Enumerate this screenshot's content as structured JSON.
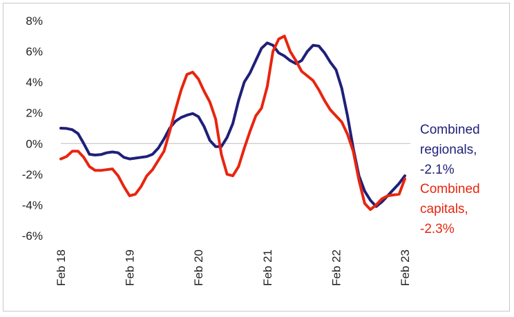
{
  "chart_data": {
    "type": "line",
    "title": "",
    "xlabel": "",
    "ylabel": "",
    "y_ticks": [
      "8%",
      "6%",
      "4%",
      "2%",
      "0%",
      "-2%",
      "-4%",
      "-6%"
    ],
    "y_tick_values": [
      8,
      6,
      4,
      2,
      0,
      -2,
      -4,
      -6
    ],
    "ylim": [
      -6,
      8
    ],
    "x_ticks": [
      "Feb 18",
      "Feb 19",
      "Feb 20",
      "Feb 21",
      "Feb 22",
      "Feb 23"
    ],
    "x_tick_months": [
      0,
      12,
      24,
      36,
      48,
      60
    ],
    "x_range": [
      0,
      60
    ],
    "x_unit": "months since Feb 18",
    "grid": false,
    "zero_line": true,
    "series": [
      {
        "name": "Combined regionals",
        "color": "#1f1f7a",
        "label_lines": [
          "Combined",
          "regionals,",
          "-2.1%"
        ],
        "points": [
          [
            0,
            1.0
          ],
          [
            1,
            0.98
          ],
          [
            2,
            0.9
          ],
          [
            3,
            0.65
          ],
          [
            4,
            0.0
          ],
          [
            5,
            -0.7
          ],
          [
            6,
            -0.75
          ],
          [
            7,
            -0.72
          ],
          [
            8,
            -0.6
          ],
          [
            9,
            -0.55
          ],
          [
            10,
            -0.6
          ],
          [
            11,
            -0.9
          ],
          [
            12,
            -1.0
          ],
          [
            13,
            -0.95
          ],
          [
            14,
            -0.9
          ],
          [
            15,
            -0.85
          ],
          [
            16,
            -0.7
          ],
          [
            17,
            -0.3
          ],
          [
            18,
            0.3
          ],
          [
            19,
            1.0
          ],
          [
            20,
            1.45
          ],
          [
            21,
            1.7
          ],
          [
            22,
            1.85
          ],
          [
            23,
            1.95
          ],
          [
            24,
            1.75
          ],
          [
            25,
            1.1
          ],
          [
            26,
            0.2
          ],
          [
            27,
            -0.2
          ],
          [
            28,
            -0.2
          ],
          [
            29,
            0.4
          ],
          [
            30,
            1.3
          ],
          [
            31,
            2.8
          ],
          [
            32,
            4.0
          ],
          [
            33,
            4.6
          ],
          [
            34,
            5.4
          ],
          [
            35,
            6.2
          ],
          [
            36,
            6.55
          ],
          [
            37,
            6.4
          ],
          [
            38,
            5.9
          ],
          [
            39,
            5.7
          ],
          [
            40,
            5.4
          ],
          [
            41,
            5.2
          ],
          [
            42,
            5.4
          ],
          [
            43,
            6.0
          ],
          [
            44,
            6.4
          ],
          [
            45,
            6.35
          ],
          [
            46,
            5.9
          ],
          [
            47,
            5.3
          ],
          [
            48,
            4.8
          ],
          [
            49,
            3.6
          ],
          [
            50,
            1.8
          ],
          [
            51,
            -0.3
          ],
          [
            52,
            -2.1
          ],
          [
            53,
            -3.1
          ],
          [
            54,
            -3.7
          ],
          [
            55,
            -4.1
          ],
          [
            56,
            -3.8
          ],
          [
            57,
            -3.4
          ],
          [
            58,
            -3.0
          ],
          [
            59,
            -2.6
          ],
          [
            60,
            -2.1
          ]
        ]
      },
      {
        "name": "Combined capitals",
        "color": "#e8250f",
        "label_lines": [
          "Combined",
          "capitals,",
          "-2.3%"
        ],
        "points": [
          [
            0,
            -1.0
          ],
          [
            1,
            -0.85
          ],
          [
            2,
            -0.5
          ],
          [
            3,
            -0.5
          ],
          [
            4,
            -0.9
          ],
          [
            5,
            -1.5
          ],
          [
            6,
            -1.75
          ],
          [
            7,
            -1.75
          ],
          [
            8,
            -1.7
          ],
          [
            9,
            -1.65
          ],
          [
            10,
            -2.1
          ],
          [
            11,
            -2.8
          ],
          [
            12,
            -3.4
          ],
          [
            13,
            -3.3
          ],
          [
            14,
            -2.8
          ],
          [
            15,
            -2.1
          ],
          [
            16,
            -1.7
          ],
          [
            17,
            -1.1
          ],
          [
            18,
            -0.5
          ],
          [
            19,
            0.8
          ],
          [
            20,
            2.2
          ],
          [
            21,
            3.5
          ],
          [
            22,
            4.5
          ],
          [
            23,
            4.65
          ],
          [
            24,
            4.2
          ],
          [
            25,
            3.4
          ],
          [
            26,
            2.7
          ],
          [
            27,
            1.6
          ],
          [
            28,
            -0.7
          ],
          [
            29,
            -2.0
          ],
          [
            30,
            -2.1
          ],
          [
            31,
            -1.5
          ],
          [
            32,
            -0.3
          ],
          [
            33,
            0.8
          ],
          [
            34,
            1.8
          ],
          [
            35,
            2.3
          ],
          [
            36,
            3.7
          ],
          [
            37,
            6.0
          ],
          [
            38,
            6.8
          ],
          [
            39,
            7.0
          ],
          [
            40,
            6.0
          ],
          [
            41,
            5.4
          ],
          [
            42,
            4.7
          ],
          [
            43,
            4.4
          ],
          [
            44,
            4.1
          ],
          [
            45,
            3.5
          ],
          [
            46,
            2.8
          ],
          [
            47,
            2.2
          ],
          [
            48,
            1.8
          ],
          [
            49,
            1.4
          ],
          [
            50,
            0.6
          ],
          [
            51,
            -0.5
          ],
          [
            52,
            -2.4
          ],
          [
            53,
            -3.9
          ],
          [
            54,
            -4.3
          ],
          [
            55,
            -4.0
          ],
          [
            56,
            -3.6
          ],
          [
            57,
            -3.4
          ],
          [
            58,
            -3.35
          ],
          [
            59,
            -3.3
          ],
          [
            60,
            -2.3
          ]
        ]
      }
    ]
  }
}
